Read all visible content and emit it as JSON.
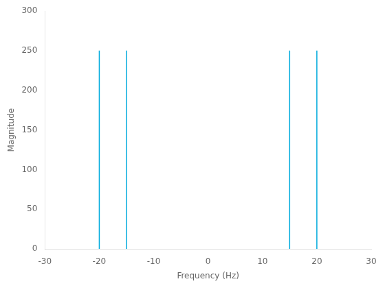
{
  "chart_data": {
    "type": "stem",
    "x": [
      -20,
      -15,
      15,
      20
    ],
    "values": [
      250,
      250,
      250,
      250
    ],
    "color": "#00AADD",
    "xlabel": "Frequency (Hz)",
    "ylabel": "Magnitude",
    "xlim": [
      -30,
      30
    ],
    "ylim": [
      0,
      300
    ],
    "xticks": [
      -30,
      -20,
      -10,
      0,
      10,
      20,
      30
    ],
    "yticks": [
      0,
      50,
      100,
      150,
      200,
      250,
      300
    ],
    "grid": false
  }
}
